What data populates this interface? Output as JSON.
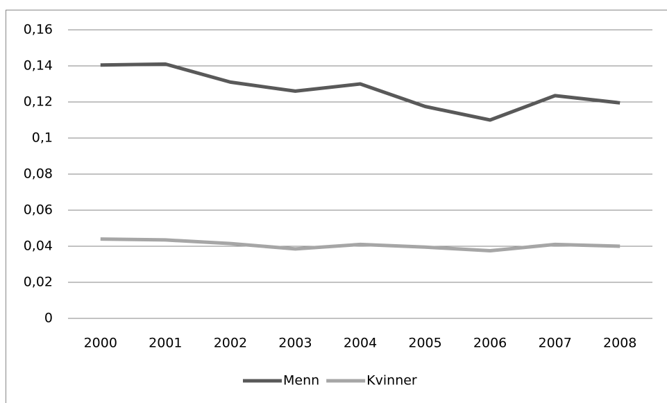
{
  "chart_data": {
    "type": "line",
    "categories": [
      "2000",
      "2001",
      "2002",
      "2003",
      "2004",
      "2005",
      "2006",
      "2007",
      "2008"
    ],
    "series": [
      {
        "name": "Menn",
        "color": "#595959",
        "values": [
          0.1405,
          0.141,
          0.131,
          0.126,
          0.13,
          0.1175,
          0.11,
          0.1235,
          0.1195
        ]
      },
      {
        "name": "Kvinner",
        "color": "#a6a6a6",
        "values": [
          0.044,
          0.0435,
          0.0415,
          0.0385,
          0.041,
          0.0395,
          0.0375,
          0.041,
          0.04
        ]
      }
    ],
    "ylim": [
      0,
      0.16
    ],
    "yticks": [
      0,
      {
        "value": 0.02,
        "label": "0,02"
      },
      {
        "value": 0.04,
        "label": "0,04"
      },
      {
        "value": 0.06,
        "label": "0,06"
      },
      {
        "value": 0.08,
        "label": "0,08"
      },
      {
        "value": 0.1,
        "label": "0,1"
      },
      {
        "value": 0.12,
        "label": "0,12"
      },
      {
        "value": 0.14,
        "label": "0,14"
      },
      {
        "value": 0.16,
        "label": "0,16"
      }
    ],
    "grid": true,
    "legend": "bottom"
  }
}
